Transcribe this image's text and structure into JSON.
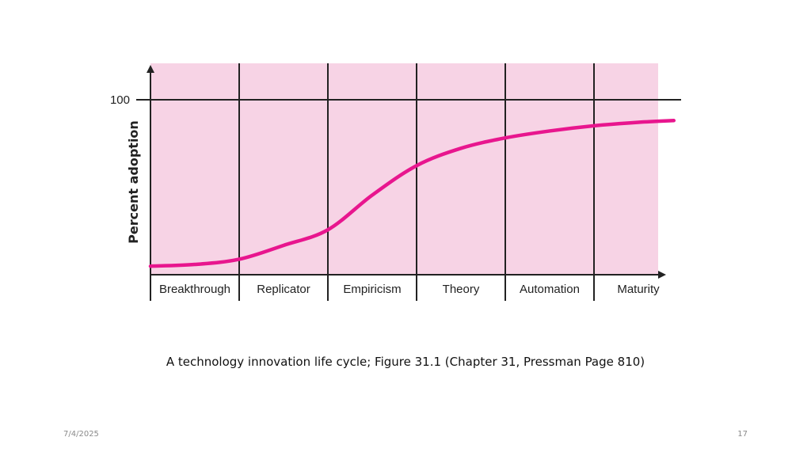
{
  "slide": {
    "caption": "A technology innovation life cycle; Figure 31.1 (Chapter 31, Pressman Page 810)",
    "date": "7/4/2025",
    "page_number": "17"
  },
  "chart_data": {
    "type": "line",
    "title": "",
    "xlabel": "",
    "ylabel": "Percent adoption",
    "categories": [
      "Breakthrough",
      "Replicator",
      "Empiricism",
      "Theory",
      "Automation",
      "Maturity"
    ],
    "y_ticks": [
      100
    ],
    "ylim": [
      0,
      100
    ],
    "x_range": [
      0,
      6
    ],
    "grid": true,
    "legend": "none",
    "colors": {
      "background_band": "#f7d3e5",
      "curve": "#e8168e",
      "axes": "#222222"
    },
    "series": [
      {
        "x": [
          0,
          0.5,
          1.0,
          1.5,
          2.0,
          2.5,
          3.0,
          3.5,
          4.0,
          4.5,
          5.0,
          5.5,
          5.9
        ],
        "values": [
          4,
          5,
          8,
          16,
          25,
          45,
          62,
          72,
          78,
          82,
          85,
          87,
          88
        ]
      }
    ]
  }
}
